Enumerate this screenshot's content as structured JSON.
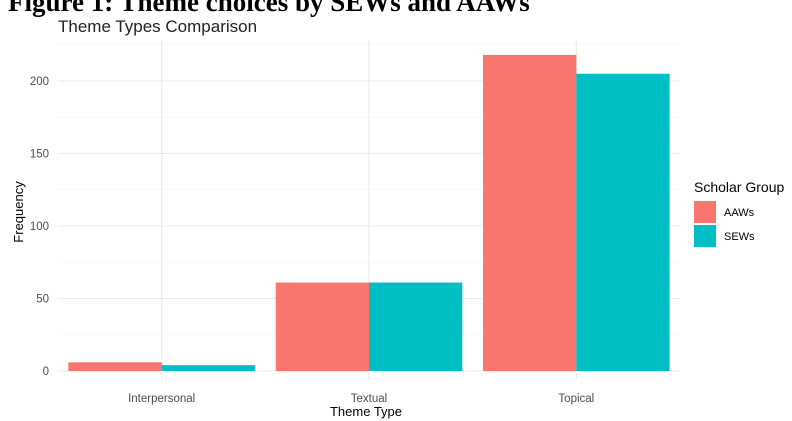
{
  "document_heading": "Figure 1: Theme choices by SEWs and AAWs",
  "chart_data": {
    "type": "bar",
    "title": "Theme Types Comparison",
    "xlabel": "Theme Type",
    "ylabel": "Frequency",
    "categories": [
      "Interpersonal",
      "Textual",
      "Topical"
    ],
    "series": [
      {
        "name": "AAWs",
        "values": [
          6,
          61,
          218
        ],
        "color": "#F8766D"
      },
      {
        "name": "SEWs",
        "values": [
          4,
          61,
          205
        ],
        "color": "#00BFC4"
      }
    ],
    "ylim": [
      0,
      225
    ],
    "yticks": [
      "0",
      "50",
      "100",
      "150",
      "200"
    ],
    "grid": true,
    "legend": {
      "title": "Scholar Group",
      "position": "right"
    }
  }
}
